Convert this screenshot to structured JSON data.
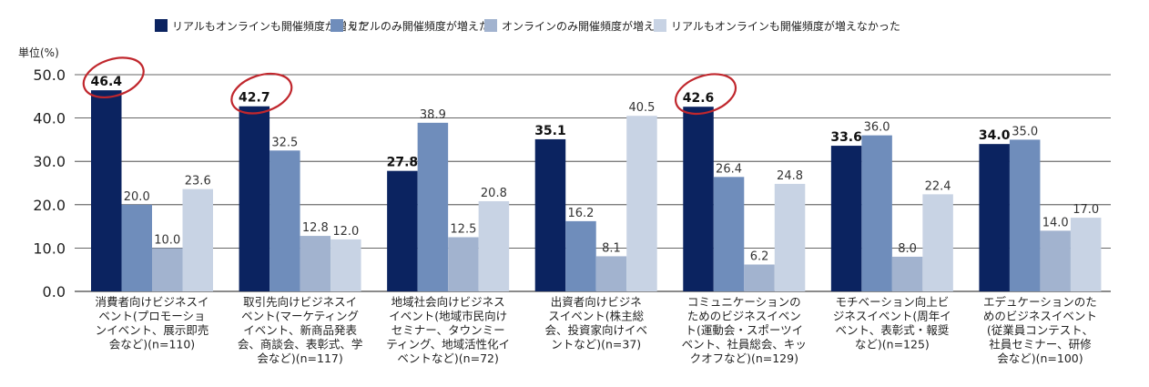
{
  "chart_data": {
    "type": "bar",
    "unit_label": "単位(%)",
    "ylim": [
      0,
      50
    ],
    "yticks": [
      "0.0",
      "10.0",
      "20.0",
      "30.0",
      "40.0",
      "50.0"
    ],
    "grid": true,
    "legend_position": "top",
    "categories": [
      [
        "消費者向けビジネスイ",
        "ベント(プロモーショ",
        "ンイベント、展示即売",
        "会など)(n=110)"
      ],
      [
        "取引先向けビジネスイ",
        "ベント(マーケティング",
        "イベント、新商品発表",
        "会、商談会、表彰式、学",
        "会など)(n=117)"
      ],
      [
        "地域社会向けビジネス",
        "イベント(地域市民向け",
        "セミナー、タウンミー",
        "ティング、地域活性化イ",
        "ベントなど)(n=72)"
      ],
      [
        "出資者向けビジネ",
        "スイベント(株主総",
        "会、投資家向けイベ",
        "ントなど)(n=37)"
      ],
      [
        "コミュニケーションの",
        "ためのビジネスイベン",
        "ト(運動会・スポーツイ",
        "ベント、社員総会、キッ",
        "クオフなど)(n=129)"
      ],
      [
        "モチベーション向上ビ",
        "ジネスイベント(周年イ",
        "ベント、表彰式・報奨",
        "など)(n=125)"
      ],
      [
        "エデュケーションのた",
        "めのビジネスイベント",
        "(従業員コンテスト、",
        "社員セミナー、研修",
        "会など)(n=100)"
      ]
    ],
    "series": [
      {
        "name": "リアルもオンラインも開催頻度が増えた",
        "color": "#0b2360",
        "values": [
          46.4,
          42.7,
          27.8,
          35.1,
          42.6,
          33.6,
          34.0
        ],
        "labels": [
          "46.4",
          "42.7",
          "27.8",
          "35.1",
          "42.6",
          "33.6",
          "34.0"
        ]
      },
      {
        "name": "リアルのみ開催頻度が増えた",
        "color": "#6f8dbb",
        "values": [
          20.0,
          32.5,
          38.9,
          16.2,
          26.4,
          36.0,
          35.0
        ],
        "labels": [
          "20.0",
          "32.5",
          "38.9",
          "16.2",
          "26.4",
          "36.0",
          "35.0"
        ]
      },
      {
        "name": "オンラインのみ開催頻度が増えた",
        "color": "#a2b3cf",
        "values": [
          10.0,
          12.8,
          12.5,
          8.1,
          6.2,
          8.0,
          14.0
        ],
        "labels": [
          "10.0",
          "12.8",
          "12.5",
          "8.1",
          "6.2",
          "8.0",
          "14.0"
        ]
      },
      {
        "name": "リアルもオンラインも開催頻度が増えなかった",
        "color": "#c8d3e4",
        "values": [
          23.6,
          12.0,
          20.8,
          40.5,
          24.8,
          22.4,
          17.0
        ],
        "labels": [
          "23.6",
          "12.0",
          "20.8",
          "40.5",
          "24.8",
          "22.4",
          "17.0"
        ]
      }
    ],
    "highlight": {
      "series_index": 0,
      "category_indices": [
        0,
        1,
        4
      ],
      "color": "#c0272d"
    }
  }
}
